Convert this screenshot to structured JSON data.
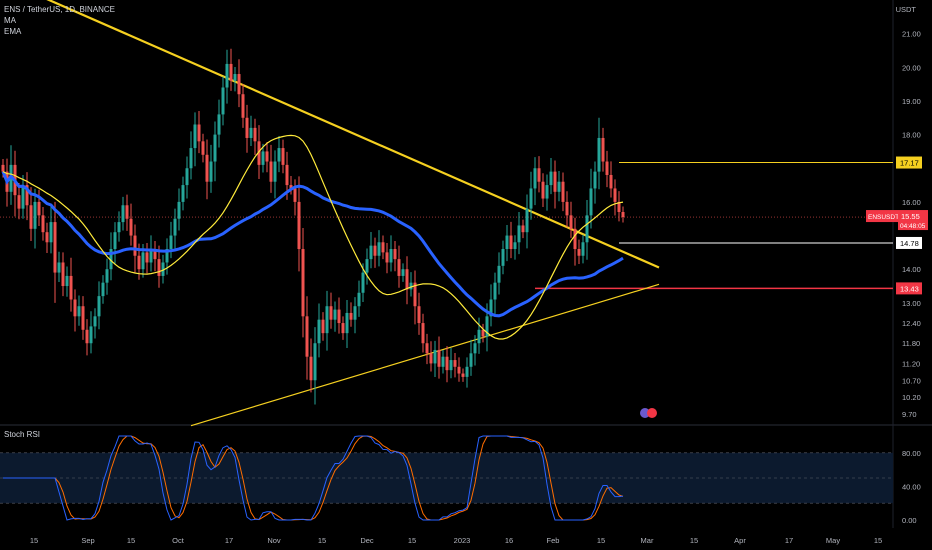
{
  "header": {
    "symbol_line": "ENS / TetherUS, 1D, BINANCE",
    "indicator_1": "MA",
    "indicator_2": "EMA",
    "currency": "USDT"
  },
  "price_axis": {
    "ticks": [
      "21.00",
      "20.00",
      "19.00",
      "18.00",
      "16.00",
      "14.00",
      "13.00",
      "12.40",
      "11.80",
      "11.20",
      "10.70",
      "10.20",
      "9.70"
    ],
    "tick_values": [
      21.0,
      20.0,
      19.0,
      18.0,
      16.0,
      14.0,
      13.0,
      12.4,
      11.8,
      11.2,
      10.7,
      10.2,
      9.7
    ]
  },
  "price_labels": {
    "level_high": "17.17",
    "ticker": "ENSUSDT",
    "last_price": "15.55",
    "countdown": "04:48:05",
    "level_mid": "14.78",
    "level_low": "13.43"
  },
  "rsi_panel": {
    "title": "Stoch RSI",
    "ticks": [
      "80.00",
      "40.00",
      "0.00"
    ],
    "tick_values": [
      80,
      40,
      0
    ],
    "bands": [
      80,
      50,
      20
    ]
  },
  "time_axis": {
    "labels": [
      "15",
      "Sep",
      "15",
      "Oct",
      "17",
      "Nov",
      "15",
      "Dec",
      "15",
      "2023",
      "16",
      "Feb",
      "15",
      "Mar",
      "15",
      "Apr",
      "17",
      "May",
      "15"
    ]
  },
  "colors": {
    "background": "#000000",
    "up": "#26a69a",
    "down": "#ef5350",
    "ma_blue": "#2962ff",
    "ema_yellow": "#ffeb3b",
    "trendline": "#f5d020",
    "level_red": "#f23645",
    "rsi_k": "#2962ff",
    "rsi_d": "#ff6d00"
  },
  "chart_data": {
    "type": "candlestick",
    "title": "ENS / TetherUS, 1D, BINANCE",
    "ylim": [
      9.4,
      22.0
    ],
    "closes": [
      16.9,
      16.3,
      17.1,
      16.2,
      15.8,
      16.5,
      15.9,
      15.2,
      16.0,
      15.6,
      15.1,
      14.8,
      15.4,
      13.9,
      14.2,
      13.5,
      13.8,
      13.1,
      12.6,
      12.9,
      12.2,
      11.8,
      12.3,
      12.6,
      13.2,
      13.6,
      14.0,
      14.6,
      15.1,
      15.4,
      15.9,
      15.5,
      15.0,
      14.4,
      14.0,
      14.5,
      14.2,
      14.6,
      14.3,
      13.8,
      14.2,
      14.6,
      15.0,
      15.5,
      16.0,
      16.5,
      17.0,
      17.6,
      18.3,
      17.8,
      17.4,
      16.6,
      17.2,
      18.0,
      18.6,
      19.4,
      20.1,
      19.6,
      19.8,
      19.2,
      18.5,
      17.9,
      18.2,
      17.8,
      17.1,
      17.5,
      17.2,
      16.6,
      17.2,
      17.6,
      17.1,
      16.5,
      16.4,
      16.0,
      14.6,
      12.6,
      11.4,
      10.7,
      11.8,
      12.5,
      12.1,
      12.9,
      12.5,
      12.8,
      12.4,
      12.1,
      12.7,
      12.5,
      12.9,
      13.3,
      13.9,
      14.3,
      14.7,
      14.4,
      14.8,
      14.5,
      14.2,
      14.6,
      14.3,
      13.8,
      14.0,
      13.4,
      13.6,
      12.9,
      12.4,
      11.8,
      11.5,
      11.2,
      11.6,
      11.1,
      11.4,
      11.0,
      11.3,
      11.1,
      10.9,
      10.8,
      11.1,
      11.5,
      11.8,
      12.2,
      12.0,
      12.6,
      13.1,
      13.6,
      14.1,
      14.6,
      15.0,
      14.6,
      14.8,
      15.3,
      15.1,
      15.8,
      16.4,
      17.0,
      16.6,
      16.1,
      16.5,
      16.9,
      16.3,
      16.6,
      16.0,
      15.6,
      15.2,
      14.6,
      14.4,
      14.8,
      15.6,
      16.4,
      16.9,
      17.9,
      17.2,
      16.8,
      16.4,
      16.0,
      15.7,
      15.55
    ],
    "trendlines": [
      {
        "name": "descending resistance",
        "from": [
          0,
          22.6
        ],
        "to": [
          164,
          14.05
        ]
      },
      {
        "name": "ascending support",
        "from": [
          47,
          9.35
        ],
        "to": [
          164,
          13.55
        ]
      }
    ],
    "horizontal_levels": [
      {
        "value": 17.17,
        "color": "#f5d020"
      },
      {
        "value": 14.78,
        "color": "#ffffff"
      },
      {
        "value": 13.43,
        "color": "#f23645"
      },
      {
        "value": 15.55,
        "color": "#ef5350"
      }
    ],
    "ma_period": 50,
    "ema_period": 9,
    "stoch_rsi": {
      "k_smooth": 3,
      "d_smooth": 3
    }
  }
}
